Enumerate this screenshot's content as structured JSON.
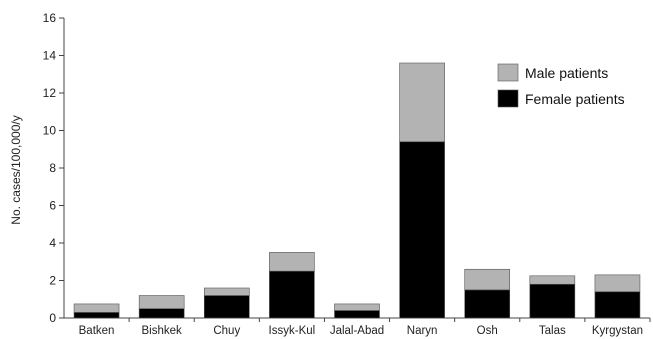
{
  "chart_data": {
    "type": "bar",
    "stacked": true,
    "categories": [
      "Batken",
      "Bishkek",
      "Chuy",
      "Issyk-Kul",
      "Jalal-Abad",
      "Naryn",
      "Osh",
      "Talas",
      "Kyrgystan"
    ],
    "series": [
      {
        "name": "Female patients",
        "color": "#000000",
        "values": [
          0.3,
          0.5,
          1.2,
          2.5,
          0.4,
          9.4,
          1.5,
          1.8,
          1.4
        ]
      },
      {
        "name": "Male patients",
        "color": "#b3b3b3",
        "values": [
          0.45,
          0.7,
          0.4,
          1.0,
          0.35,
          4.2,
          1.1,
          0.45,
          0.9
        ]
      }
    ],
    "ylabel": "No. cases/100,000/y",
    "xlabel": "",
    "ylim": [
      0,
      16
    ],
    "yticks": [
      0,
      2,
      4,
      6,
      8,
      10,
      12,
      14,
      16
    ],
    "legend_position": "top-right",
    "legend_order": [
      "Male patients",
      "Female patients"
    ],
    "grid": false
  }
}
